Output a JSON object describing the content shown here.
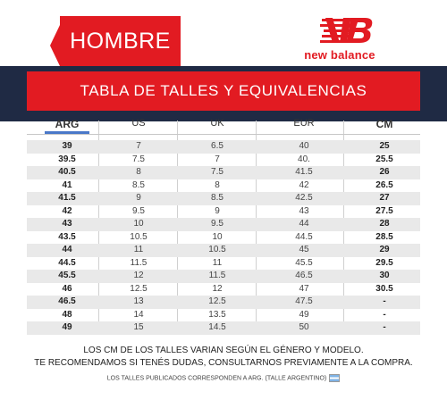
{
  "header": {
    "gender_label": "HOMBRE",
    "brand_name": "new balance",
    "brand_mark_icon": "nb-logo-icon"
  },
  "banner": {
    "title": "TABLA DE TALLES Y EQUIVALENCIAS"
  },
  "table": {
    "columns": [
      "ARG",
      "US",
      "UK",
      "EUR",
      "CM"
    ],
    "rows": [
      [
        "39",
        "7",
        "6.5",
        "40",
        "25"
      ],
      [
        "39.5",
        "7.5",
        "7",
        "40.",
        "25.5"
      ],
      [
        "40.5",
        "8",
        "7.5",
        "41.5",
        "26"
      ],
      [
        "41",
        "8.5",
        "8",
        "42",
        "26.5"
      ],
      [
        "41.5",
        "9",
        "8.5",
        "42.5",
        "27"
      ],
      [
        "42",
        "9.5",
        "9",
        "43",
        "27.5"
      ],
      [
        "43",
        "10",
        "9.5",
        "44",
        "28"
      ],
      [
        "43.5",
        "10.5",
        "10",
        "44.5",
        "28.5"
      ],
      [
        "44",
        "11",
        "10.5",
        "45",
        "29"
      ],
      [
        "44.5",
        "11.5",
        "11",
        "45.5",
        "29.5"
      ],
      [
        "45.5",
        "12",
        "11.5",
        "46.5",
        "30"
      ],
      [
        "46",
        "12.5",
        "12",
        "47",
        "30.5"
      ],
      [
        "46.5",
        "13",
        "12.5",
        "47.5",
        "-"
      ],
      [
        "48",
        "14",
        "13.5",
        "49",
        "-"
      ],
      [
        "49",
        "15",
        "14.5",
        "50",
        "-"
      ]
    ]
  },
  "notes": {
    "line1": "LOS CM DE LOS TALLES VARIAN SEGÚN EL GÉNERO Y MODELO.",
    "line2": "TE RECOMENDAMOS SI TENÉS DUDAS, CONSULTARNOS PREVIAMENTE A LA COMPRA.",
    "footer": "LOS TALLES PUBLICADOS CORRESPONDEN A ARG. (TALLE ARGENTINO)",
    "flag_icon": "argentina-flag-icon"
  },
  "colors": {
    "brand_red": "#e21b22",
    "navy": "#1f2a44",
    "row_stripe": "#e9e9e9",
    "arg_underline": "#4a78c8"
  }
}
